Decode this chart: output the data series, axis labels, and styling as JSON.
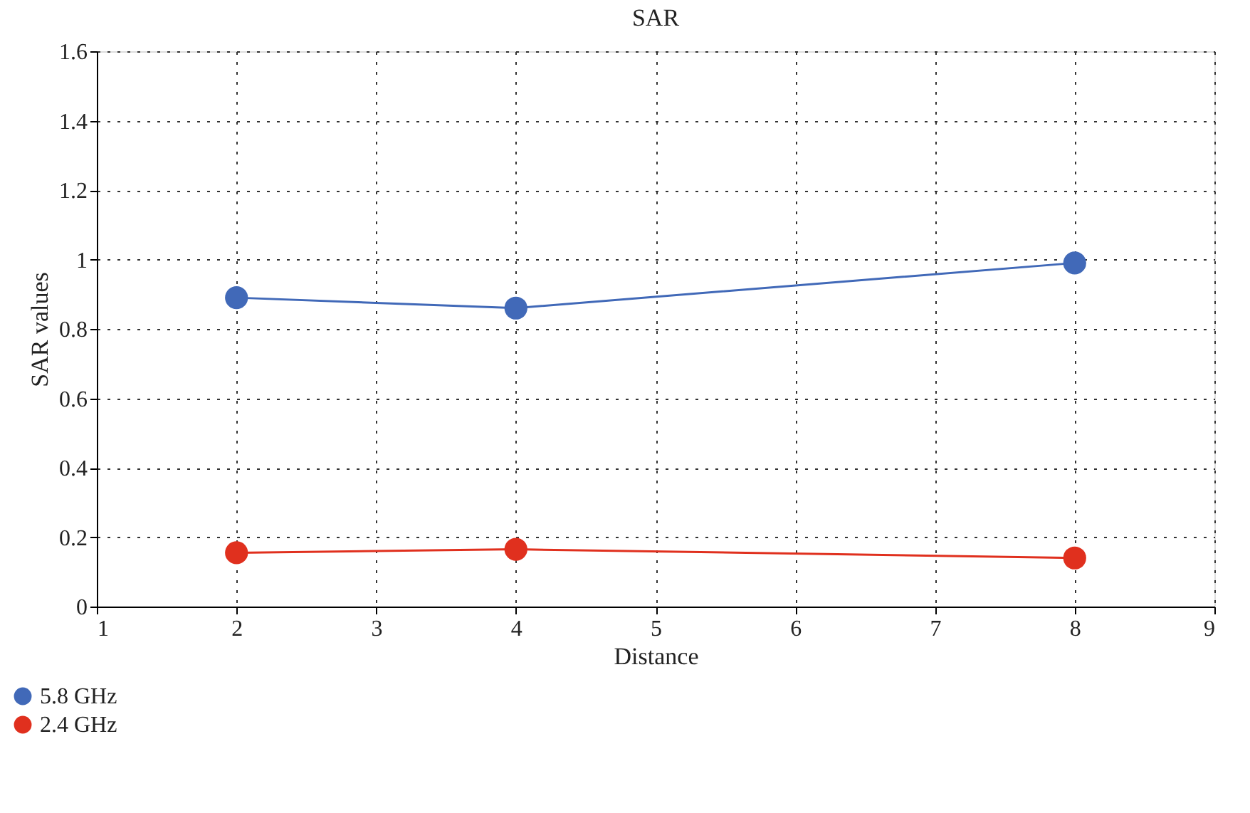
{
  "chart_data": {
    "type": "line",
    "title": "SAR",
    "xlabel": "Distance",
    "ylabel": "SAR values",
    "x": [
      2,
      4,
      8
    ],
    "series": [
      {
        "name": "5.8 GHz",
        "color": "#4169b8",
        "values": [
          0.89,
          0.86,
          0.99
        ]
      },
      {
        "name": "2.4 GHz",
        "color": "#e0301e",
        "values": [
          0.155,
          0.165,
          0.14
        ]
      }
    ],
    "xlim": [
      1,
      9
    ],
    "xticks": [
      1,
      2,
      3,
      4,
      5,
      6,
      7,
      8,
      9
    ],
    "ylim": [
      0,
      1.6
    ],
    "yticks": [
      0,
      0.2,
      0.4,
      0.6,
      0.8,
      1,
      1.2,
      1.4,
      1.6
    ],
    "grid": true,
    "legend": "bottom left",
    "marker": "circle",
    "line_style": "solid"
  }
}
